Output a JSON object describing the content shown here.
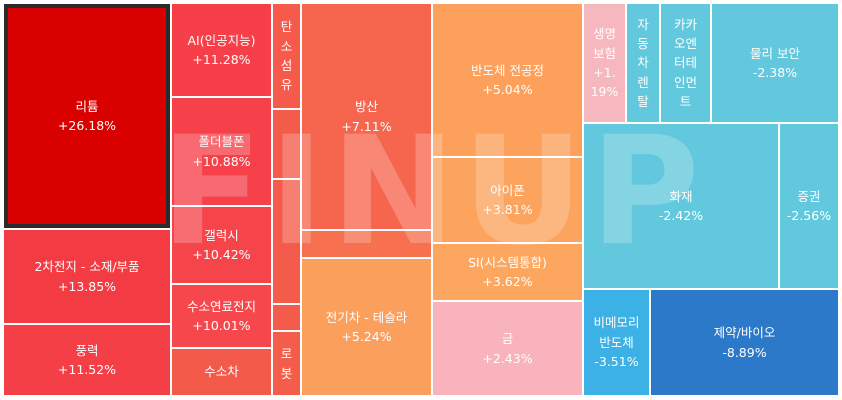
{
  "chart_data": {
    "type": "treemap",
    "metric_unit": "%",
    "tiles": [
      {
        "id": "lithium",
        "label": "리튬",
        "value": "+26.18%",
        "color": "#d90000",
        "selected": true
      },
      {
        "id": "battery",
        "label": "2차전지 - 소재/부품",
        "value": "+13.85%",
        "color": "#f33b44"
      },
      {
        "id": "wind",
        "label": "풍력",
        "value": "+11.52%",
        "color": "#f53f47"
      },
      {
        "id": "ai",
        "label": "AI(인공지능)",
        "value": "+11.28%",
        "color": "#f63f48"
      },
      {
        "id": "foldable",
        "label": "폴더블폰",
        "value": "+10.88%",
        "color": "#f6414a"
      },
      {
        "id": "galaxy",
        "label": "갤럭시",
        "value": "+10.42%",
        "color": "#f6444b"
      },
      {
        "id": "fuelcell",
        "label": "수소연료전지",
        "value": "+10.01%",
        "color": "#f6474d"
      },
      {
        "id": "hydrogen_car",
        "label": "수소차",
        "value": "",
        "color": "#f35a4a"
      },
      {
        "id": "carbon_fiber",
        "label": "탄소섬유",
        "value": "",
        "color": "#f55a4b"
      },
      {
        "id": "small_a",
        "label": "",
        "value": "",
        "color": "#f55b4b"
      },
      {
        "id": "small_b",
        "label": "",
        "value": "",
        "color": "#f55b4b"
      },
      {
        "id": "small_c",
        "label": "",
        "value": "",
        "color": "#f55b4b"
      },
      {
        "id": "robot",
        "label": "로봇",
        "value": "",
        "color": "#f55d4b"
      },
      {
        "id": "defense",
        "label": "방산",
        "value": "+7.11%",
        "color": "#f6664f"
      },
      {
        "id": "small_d",
        "label": "",
        "value": "",
        "color": "#f7704f"
      },
      {
        "id": "ev_tesla",
        "label": "전기차 - 테슬라",
        "value": "+5.24%",
        "color": "#fb9f5d"
      },
      {
        "id": "semi_process",
        "label": "반도체 전공정",
        "value": "+5.04%",
        "color": "#fca05c"
      },
      {
        "id": "iphone",
        "label": "아이폰",
        "value": "+3.81%",
        "color": "#fca35e"
      },
      {
        "id": "si",
        "label": "SI(시스템통합)",
        "value": "+3.62%",
        "color": "#fca65f"
      },
      {
        "id": "gold",
        "label": "금",
        "value": "+2.43%",
        "color": "#f8b3bc"
      },
      {
        "id": "life_ins",
        "label": "생명보험",
        "value": "+1.19%",
        "color": "#f7b7bf"
      },
      {
        "id": "autonomous",
        "label": "자동차렌탈",
        "value": "",
        "color": "#62c8dd"
      },
      {
        "id": "kakao",
        "label": "카카오엔터테인먼트",
        "value": "",
        "color": "#62c8dd"
      },
      {
        "id": "phys_sec",
        "label": "물리 보안",
        "value": "-2.38%",
        "color": "#62c8dd"
      },
      {
        "id": "chem",
        "label": "화재",
        "value": "-2.42%",
        "color": "#62c8dd"
      },
      {
        "id": "securities",
        "label": "증권",
        "value": "-2.56%",
        "color": "#62c8dd"
      },
      {
        "id": "nonmem",
        "label": "비메모리 반도체",
        "value": "-3.51%",
        "color": "#3bb1e6"
      },
      {
        "id": "pharma",
        "label": "제약/바이오",
        "value": "-8.89%",
        "color": "#2b79c8"
      }
    ]
  },
  "watermark": "FINUP"
}
